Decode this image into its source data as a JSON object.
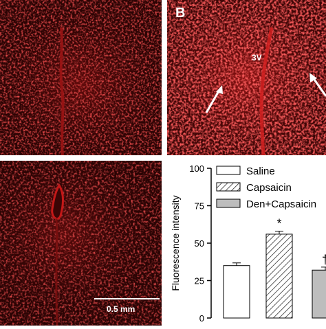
{
  "panels": {
    "b": {
      "letter": "B",
      "label_3v": "3V"
    },
    "c": {
      "scale_bar_label": "0.5 mm"
    }
  },
  "colors": {
    "tissue_background": "#3a0505",
    "tissue_signal": "#c41818",
    "bar_outline": "#000000",
    "den_capsaicin_fill": "#bdbdbd"
  },
  "chart_data": {
    "type": "bar",
    "categories": [
      "Saline",
      "Capsaicin",
      "Den+Capsaicin"
    ],
    "series": [
      {
        "name": "Saline",
        "value": 35,
        "error": 1.8,
        "fill": "none"
      },
      {
        "name": "Capsaicin",
        "value": 56,
        "error": 2.0,
        "fill": "hatched",
        "annotation": "*"
      },
      {
        "name": "Den+Capsaicin",
        "value": 32,
        "error": 2.0,
        "fill": "gray",
        "annotation": "†"
      }
    ],
    "ylabel": "Fluorescence intensity",
    "xlabel": "",
    "ylim": [
      0,
      100
    ],
    "yticks": [
      0,
      25,
      50,
      75,
      100
    ],
    "legend": [
      "Saline",
      "Capsaicin",
      "Den+Capsaicin"
    ],
    "legend_position": "top-right"
  }
}
